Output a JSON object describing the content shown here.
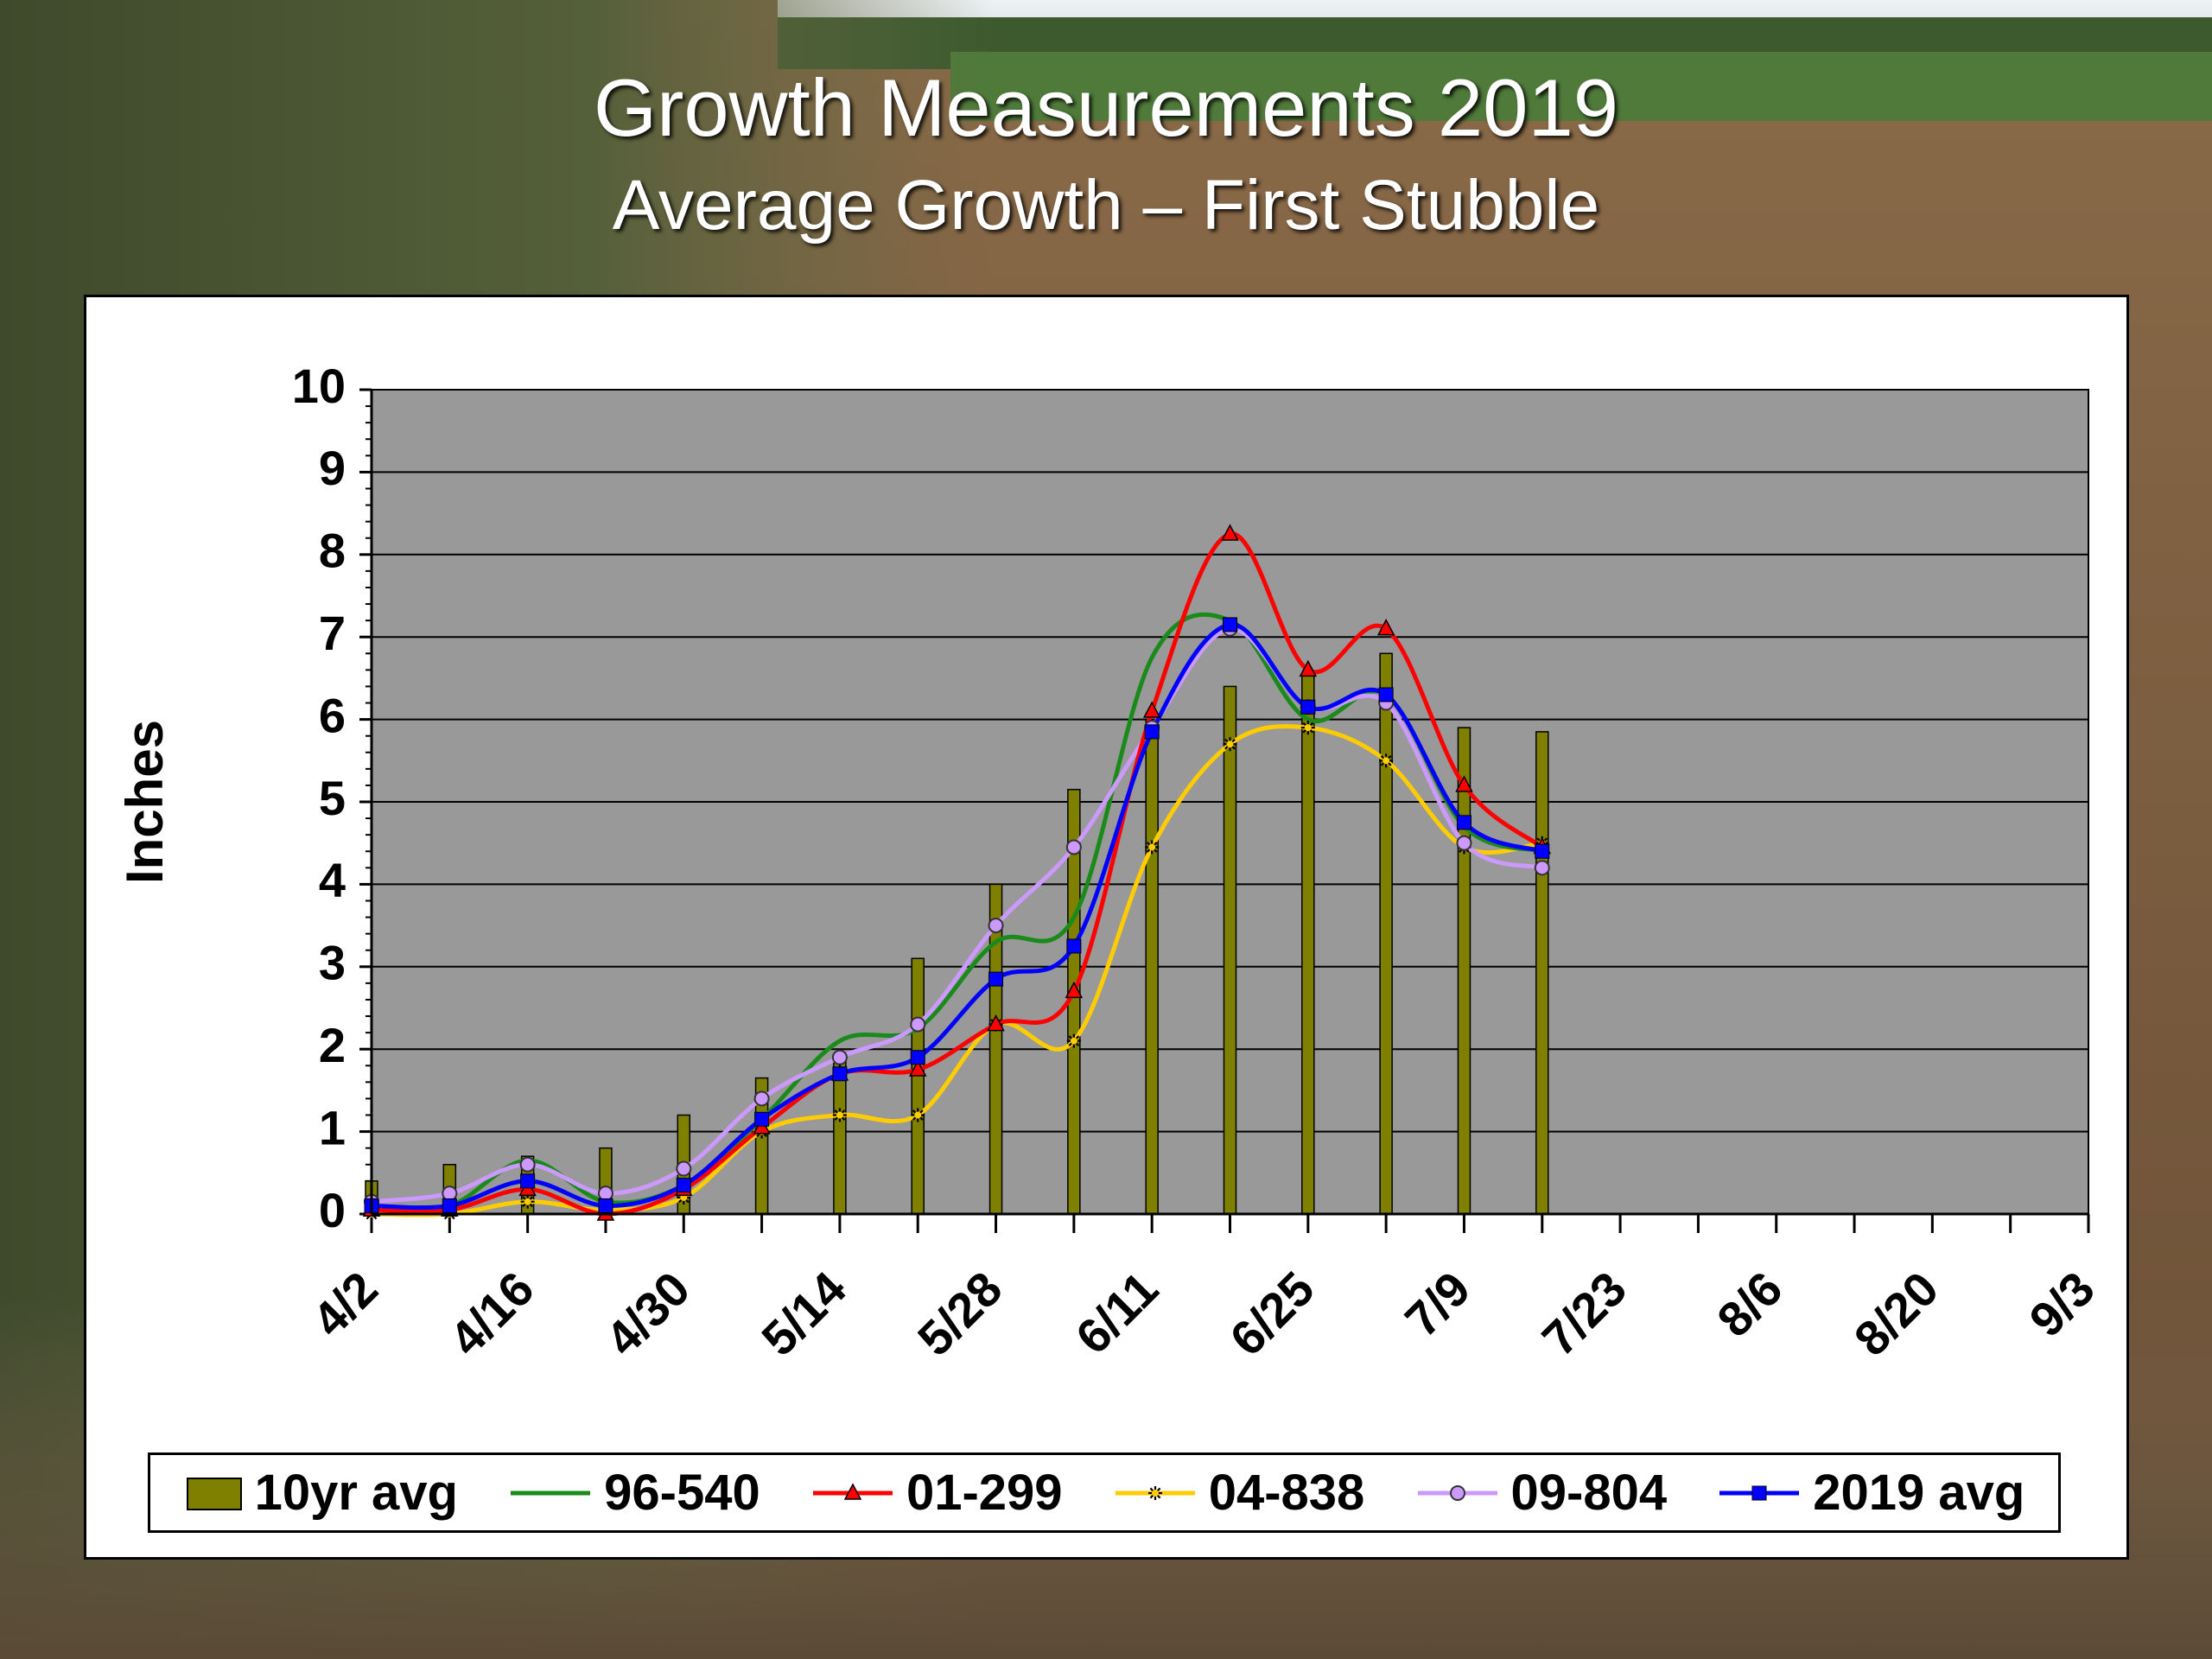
{
  "slide": {
    "title": "Growth Measurements 2019",
    "subtitle": "Average Growth – First Stubble"
  },
  "colors": {
    "plot_background": "#999999",
    "gridline": "#000000",
    "bar_fill": "#808000",
    "series_96_540": "#1a8a1a",
    "series_01_299": "#ff0000",
    "series_04_838": "#ffcc00",
    "series_09_804": "#cc99ff",
    "series_2019_avg": "#0000ff"
  },
  "chart_data": {
    "type": "bar",
    "title": "",
    "xlabel": "",
    "ylabel": "Inches",
    "ylim": [
      0,
      10
    ],
    "yticks": [
      "0",
      "1",
      "2",
      "3",
      "4",
      "5",
      "6",
      "7",
      "8",
      "9",
      "10"
    ],
    "xlim": [
      "2019-04-02",
      "2019-09-03"
    ],
    "xtick_labels": [
      "4/2",
      "4/16",
      "4/30",
      "5/14",
      "5/28",
      "6/11",
      "6/25",
      "7/9",
      "7/23",
      "8/6",
      "8/20",
      "9/3"
    ],
    "grid": true,
    "legend_position": "bottom",
    "categories": [
      "4/2",
      "4/9",
      "4/16",
      "4/23",
      "4/30",
      "5/7",
      "5/14",
      "5/21",
      "5/28",
      "6/4",
      "6/11",
      "6/18",
      "6/25",
      "7/2",
      "7/9",
      "7/16"
    ],
    "series": [
      {
        "name": "10yr avg",
        "type": "bar",
        "marker": "none",
        "values": [
          0.4,
          0.6,
          0.7,
          0.8,
          1.2,
          1.65,
          1.9,
          3.1,
          4.0,
          5.15,
          6.0,
          6.4,
          6.55,
          6.8,
          5.9,
          5.85
        ]
      },
      {
        "name": "96-540",
        "type": "line",
        "marker": "none",
        "values": [
          0.1,
          0.1,
          0.65,
          0.15,
          0.35,
          1.15,
          2.1,
          2.25,
          3.3,
          3.6,
          6.75,
          7.2,
          6.0,
          6.3,
          4.7,
          4.4
        ]
      },
      {
        "name": "01-299",
        "type": "line",
        "marker": "triangle",
        "values": [
          0.05,
          0.05,
          0.3,
          0.0,
          0.3,
          1.05,
          1.7,
          1.75,
          2.3,
          2.7,
          6.1,
          8.25,
          6.6,
          7.1,
          5.2,
          4.45
        ]
      },
      {
        "name": "04-838",
        "type": "line",
        "marker": "star",
        "values": [
          0.0,
          0.0,
          0.15,
          0.05,
          0.2,
          1.0,
          1.2,
          1.2,
          2.3,
          2.1,
          4.45,
          5.7,
          5.9,
          5.5,
          4.45,
          4.5
        ]
      },
      {
        "name": "09-804",
        "type": "line",
        "marker": "circle",
        "values": [
          0.15,
          0.25,
          0.6,
          0.25,
          0.55,
          1.4,
          1.9,
          2.3,
          3.5,
          4.45,
          5.9,
          7.1,
          6.15,
          6.2,
          4.5,
          4.2
        ]
      },
      {
        "name": "2019 avg",
        "type": "line",
        "marker": "square",
        "values": [
          0.1,
          0.1,
          0.4,
          0.1,
          0.35,
          1.15,
          1.7,
          1.9,
          2.85,
          3.25,
          5.85,
          7.15,
          6.15,
          6.3,
          4.75,
          4.4
        ]
      }
    ]
  }
}
